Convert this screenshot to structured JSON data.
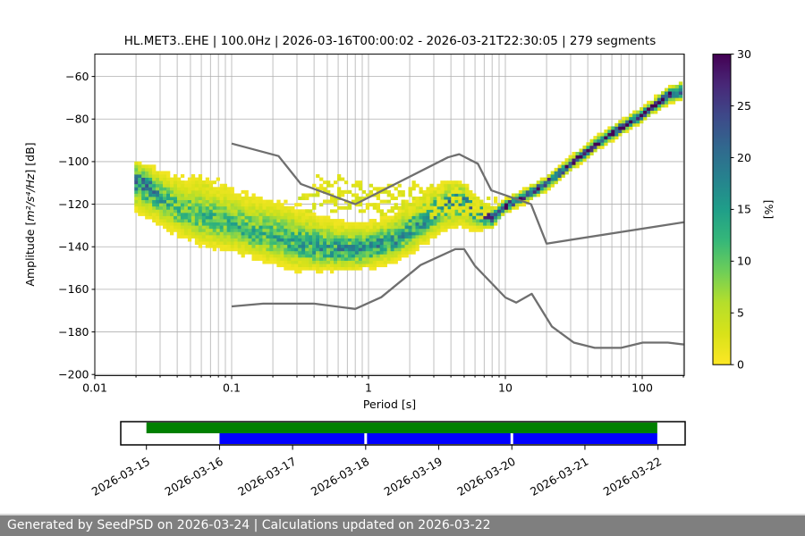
{
  "header": {
    "title": "HL.MET3..EHE | 100.0Hz | 2026-03-16T00:00:02 - 2026-03-21T22:30:05 | 279 segments"
  },
  "footer": {
    "text": "Generated by SeedPSD on 2026-03-24 | Calculations updated on 2026-03-22",
    "bg": "#7f7f7f",
    "fg": "#ffffff"
  },
  "chart_data": {
    "type": "heatmap",
    "title": "HL.MET3..EHE | 100.0Hz | 2026-03-16T00:00:02 - 2026-03-21T22:30:05 | 279 segments",
    "xlabel": "Period [s]",
    "ylabel_parts": {
      "prefix": "Amplitude [",
      "math": "m²/s⁴/Hz",
      "suffix": "] [dB]"
    },
    "xscale": "log",
    "xlim": [
      0.01,
      203
    ],
    "ylim": [
      -200.5,
      -49.5
    ],
    "xticks": [
      0.01,
      0.1,
      1,
      10,
      100
    ],
    "xtick_labels": [
      "0.01",
      "0.1",
      "1",
      "10",
      "100"
    ],
    "yticks": [
      -200,
      -180,
      -160,
      -140,
      -120,
      -100,
      -80,
      -60
    ],
    "grid": true,
    "grid_color": "#b0b0b0",
    "colorbar": {
      "label": "[%]",
      "min": 0,
      "max": 30,
      "ticks": [
        0,
        5,
        10,
        15,
        20,
        25,
        30
      ],
      "colormap": "viridis_r",
      "viridis_stops": [
        [
          0.0,
          "#440154"
        ],
        [
          0.1,
          "#482878"
        ],
        [
          0.2,
          "#3e4989"
        ],
        [
          0.3,
          "#31688e"
        ],
        [
          0.4,
          "#26828e"
        ],
        [
          0.5,
          "#1f9e89"
        ],
        [
          0.6,
          "#35b779"
        ],
        [
          0.7,
          "#6ece58"
        ],
        [
          0.8,
          "#b5de2b"
        ],
        [
          0.9,
          "#d8e219"
        ],
        [
          1.0,
          "#fde725"
        ]
      ]
    },
    "histogram": {
      "comment_units": "PPSD probability distribution: log10(period s) control points, mode dB, upward/downward spread dB, peak percent",
      "lp_ctrl": [
        -1.71,
        -1.6,
        -1.5,
        -1.38,
        -1.26,
        -1.15,
        -1.0,
        -0.85,
        -0.7,
        -0.52,
        -0.35,
        -0.15,
        0.0,
        0.18,
        0.34,
        0.5,
        0.6,
        0.7,
        0.8,
        0.9,
        1.0,
        1.15,
        1.3,
        1.48,
        1.7,
        2.0,
        2.2,
        2.31
      ],
      "mode_db": [
        -107.5,
        -112,
        -118,
        -123,
        -126,
        -127,
        -130,
        -133,
        -135.5,
        -138.5,
        -141,
        -142,
        -141,
        -137.5,
        -131,
        -123,
        -118,
        -118.5,
        -124,
        -126.5,
        -121,
        -116,
        -110.5,
        -101,
        -90,
        -78,
        -68.5,
        -66.5
      ],
      "spread_up": [
        7,
        9,
        11,
        14,
        16,
        15,
        15,
        15,
        15,
        15,
        13,
        11,
        10.5,
        10.5,
        11,
        10,
        8,
        7,
        5,
        3.5,
        2.8,
        2.8,
        2.8,
        2.8,
        2.8,
        2.8,
        3.2,
        3.6
      ],
      "spread_down": [
        13,
        12,
        11,
        11,
        11,
        12,
        11,
        11,
        11,
        11,
        9,
        8,
        8,
        8.5,
        9,
        10,
        11,
        10,
        7,
        4,
        2.8,
        2.8,
        2.8,
        2.8,
        2.8,
        2.8,
        3.2,
        3.6
      ],
      "peak_percent": [
        18,
        17,
        13,
        11,
        11,
        11,
        11,
        12,
        12,
        13,
        14,
        15,
        15,
        15,
        15,
        16,
        17,
        18,
        22,
        27,
        28,
        28,
        28,
        29,
        29,
        29,
        28,
        26
      ],
      "period_step_decades": 0.026,
      "db_cell": 1.5,
      "lp_start": -1.71,
      "lp_end": 2.307
    },
    "streaks": [
      {
        "p0": 0.42,
        "p1": 9.0,
        "db0": -108.5,
        "db1": -119.5,
        "pct": 2.2
      },
      {
        "p0": 0.38,
        "p1": 9.0,
        "db0": -111.5,
        "db1": -121.0,
        "pct": 2.6
      },
      {
        "p0": 0.33,
        "p1": 8.5,
        "db0": -114.0,
        "db1": -122.5,
        "pct": 2.4
      },
      {
        "p0": 0.3,
        "p1": 8.5,
        "db0": -116.5,
        "db1": -123.5,
        "pct": 3.2
      },
      {
        "p0": 0.3,
        "p1": 8.0,
        "db0": -119.0,
        "db1": -124.5,
        "pct": 2.5
      },
      {
        "p0": 0.35,
        "p1": 7.5,
        "db0": -121.5,
        "db1": -125.5,
        "pct": 2.8
      },
      {
        "p0": 1.6,
        "p1": 6.5,
        "db0": -109.5,
        "db1": -116.5,
        "pct": 2.0
      },
      {
        "p0": 0.042,
        "p1": 0.095,
        "db0": -111.0,
        "db1": -113.5,
        "pct": 3.0,
        "thick": 2
      },
      {
        "p0": 0.05,
        "p1": 0.08,
        "db0": -108.0,
        "db1": -110.0,
        "pct": 2.0
      }
    ],
    "noise_models": {
      "color": "#6f6f6f",
      "width": 2.3,
      "nhnm": [
        [
          0.1,
          -91.5
        ],
        [
          0.22,
          -97.4
        ],
        [
          0.32,
          -110.5
        ],
        [
          0.8,
          -120.0
        ],
        [
          3.8,
          -98.0
        ],
        [
          4.6,
          -96.5
        ],
        [
          6.3,
          -101.0
        ],
        [
          7.9,
          -113.5
        ],
        [
          15.4,
          -120.0
        ],
        [
          20.0,
          -138.5
        ],
        [
          354.8,
          -126.0
        ]
      ],
      "nlnm": [
        [
          0.1,
          -168.0
        ],
        [
          0.17,
          -166.7
        ],
        [
          0.4,
          -166.7
        ],
        [
          0.8,
          -169.2
        ],
        [
          1.24,
          -163.7
        ],
        [
          2.4,
          -148.6
        ],
        [
          4.3,
          -141.1
        ],
        [
          5.0,
          -141.1
        ],
        [
          6.0,
          -149.0
        ],
        [
          10.0,
          -163.8
        ],
        [
          12.0,
          -166.2
        ],
        [
          15.6,
          -162.1
        ],
        [
          21.9,
          -177.5
        ],
        [
          31.6,
          -185.0
        ],
        [
          45.0,
          -187.5
        ],
        [
          70.0,
          -187.5
        ],
        [
          101.0,
          -185.0
        ],
        [
          154.0,
          -185.0
        ],
        [
          328.0,
          -187.5
        ]
      ]
    }
  },
  "timeline": {
    "date_ticks": [
      "2026-03-15",
      "2026-03-16",
      "2026-03-17",
      "2026-03-18",
      "2026-03-19",
      "2026-03-20",
      "2026-03-21",
      "2026-03-22"
    ],
    "bars": [
      {
        "name": "data-availability",
        "color": "#008000",
        "start_day": 0.0,
        "end_day": 6.99,
        "row": 0,
        "gap_days": []
      },
      {
        "name": "computed-psds",
        "color": "#0000ff",
        "start_day": 1.0,
        "end_day": 6.99,
        "row": 1,
        "gap_days": [
          3.0,
          5.0
        ]
      }
    ]
  }
}
